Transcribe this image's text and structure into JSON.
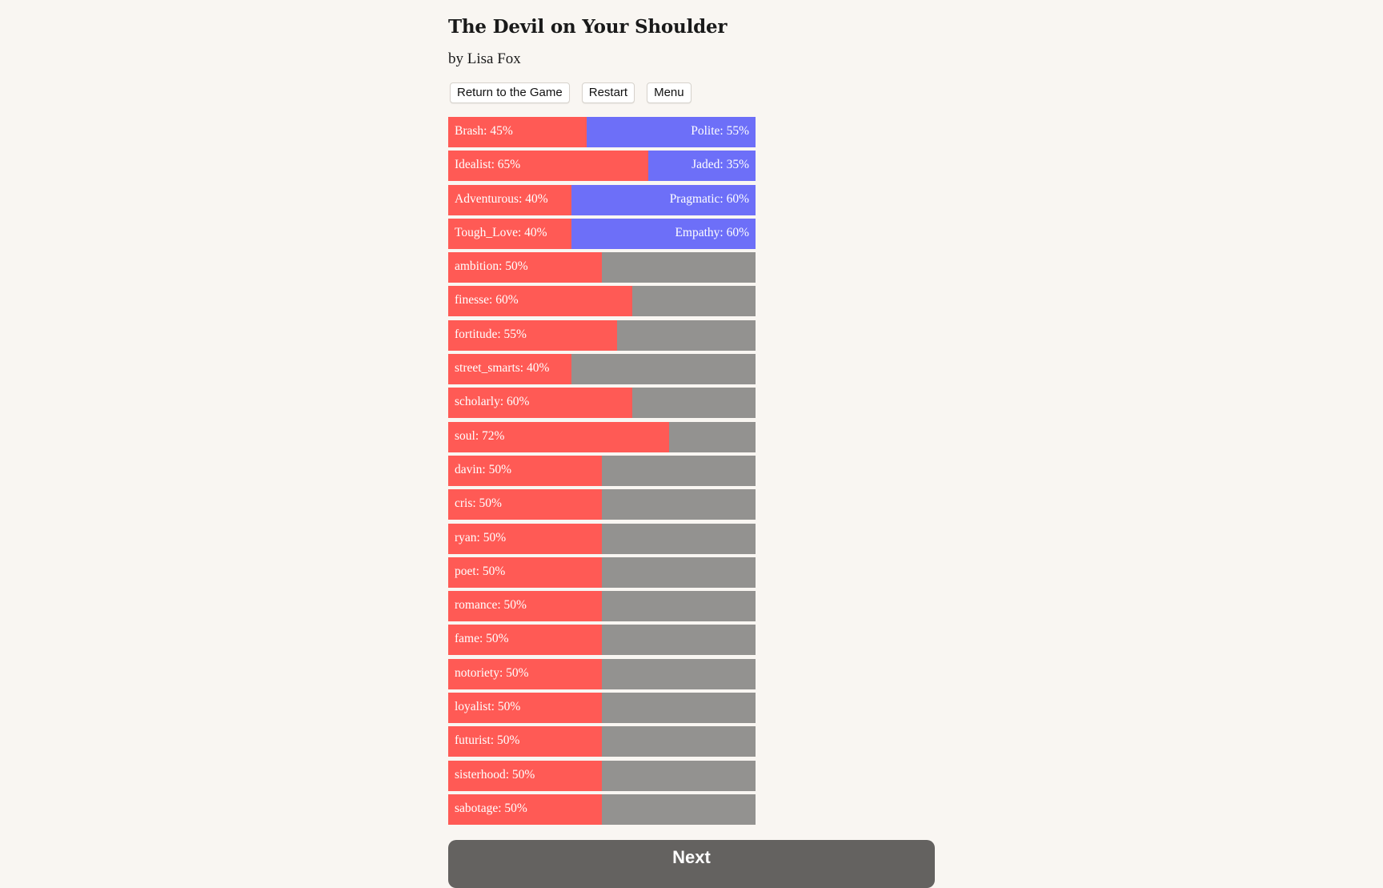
{
  "header": {
    "title": "The Devil on Your Shoulder",
    "author": "by Lisa Fox"
  },
  "toolbar": {
    "return_label": "Return to the Game",
    "restart_label": "Restart",
    "menu_label": "Menu"
  },
  "colors": {
    "left_fill": "#ff5a55",
    "right_opposed": "#6d6ff8",
    "right_neutral": "#939290",
    "next_button": "#646260"
  },
  "opposed_stats": [
    {
      "left": "Brash: 45%",
      "right": "Polite: 55%",
      "value": 45
    },
    {
      "left": "Idealist: 65%",
      "right": "Jaded: 35%",
      "value": 65
    },
    {
      "left": "Adventurous: 40%",
      "right": "Pragmatic: 60%",
      "value": 40
    },
    {
      "left": "Tough_Love: 40%",
      "right": "Empathy: 60%",
      "value": 40
    }
  ],
  "percent_stats": [
    {
      "label": "ambition: 50%",
      "value": 50
    },
    {
      "label": "finesse: 60%",
      "value": 60
    },
    {
      "label": "fortitude: 55%",
      "value": 55
    },
    {
      "label": "street_smarts: 40%",
      "value": 40
    },
    {
      "label": "scholarly: 60%",
      "value": 60
    },
    {
      "label": "soul: 72%",
      "value": 72
    },
    {
      "label": "davin: 50%",
      "value": 50
    },
    {
      "label": "cris: 50%",
      "value": 50
    },
    {
      "label": "ryan: 50%",
      "value": 50
    },
    {
      "label": "poet: 50%",
      "value": 50
    },
    {
      "label": "romance: 50%",
      "value": 50
    },
    {
      "label": "fame: 50%",
      "value": 50
    },
    {
      "label": "notoriety: 50%",
      "value": 50
    },
    {
      "label": "loyalist: 50%",
      "value": 50
    },
    {
      "label": "futurist: 50%",
      "value": 50
    },
    {
      "label": "sisterhood: 50%",
      "value": 50
    },
    {
      "label": "sabotage: 50%",
      "value": 50
    }
  ],
  "footer": {
    "next_label": "Next"
  }
}
